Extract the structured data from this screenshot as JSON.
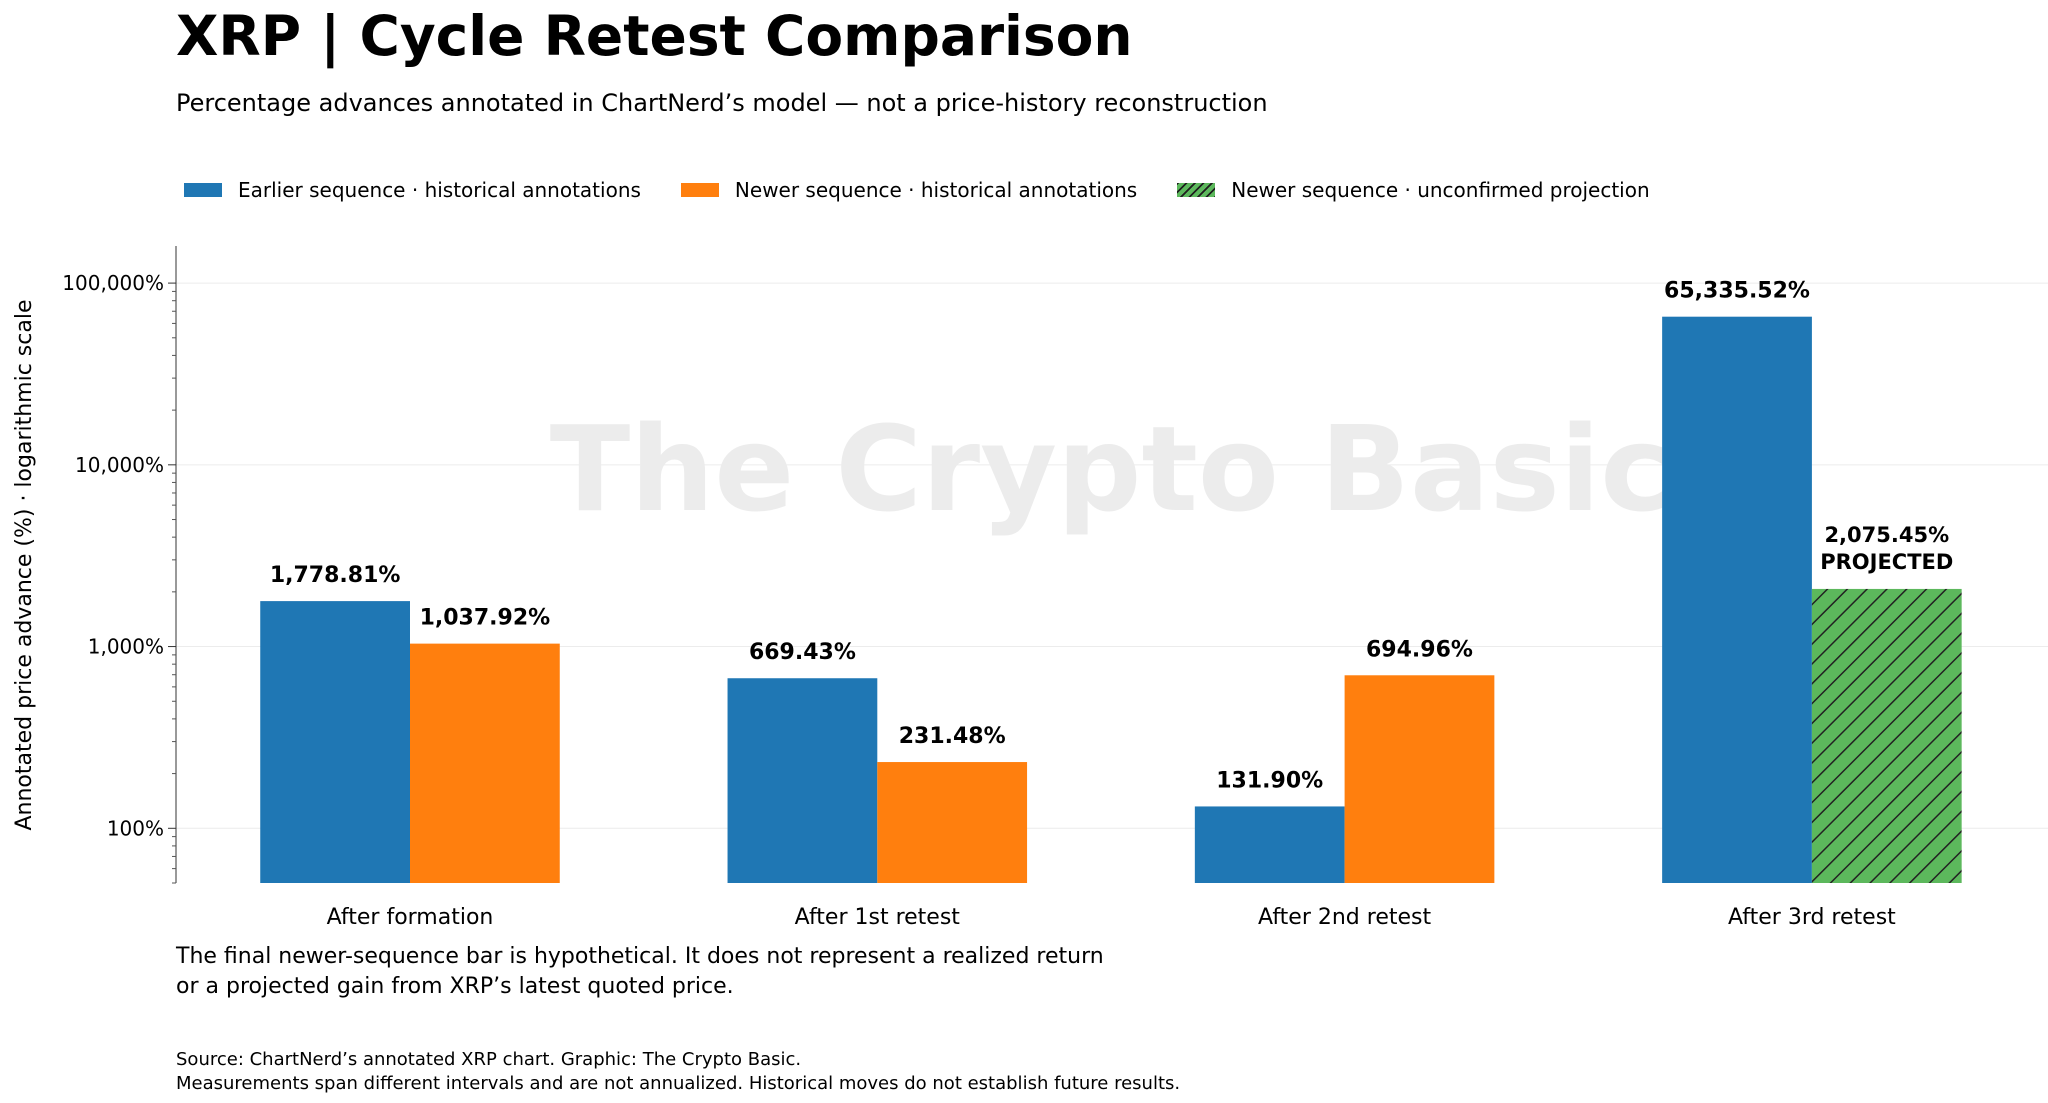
{
  "title": "XRP | Cycle Retest Comparison",
  "subtitle": "Percentage advances annotated in ChartNerd’s model — not a price-history reconstruction",
  "watermark": "The Crypto Basic",
  "legend": [
    {
      "label": "Earlier sequence · historical annotations",
      "color": "#1f77b4"
    },
    {
      "label": "Newer sequence · historical annotations",
      "color": "#ff7f0e"
    },
    {
      "label": "Newer sequence · unconfirmed projection",
      "color": "#5cb85c"
    }
  ],
  "note": {
    "line1": "The final newer-sequence bar is hypothetical. It does not represent a realized return",
    "line2": "or a projected gain from XRP’s latest quoted price."
  },
  "source": {
    "line1": "Source: ChartNerd’s annotated XRP chart. Graphic: The Crypto Basic.",
    "line2": "Measurements span different intervals and are not annualized. Historical moves do not establish future results."
  },
  "chart_data": {
    "type": "bar",
    "title": "XRP | Cycle Retest Comparison",
    "ylabel": "Annotated price advance (%) · logarithmic scale",
    "xlabel": "",
    "yscale": "log",
    "ylim": [
      50,
      160000
    ],
    "yticks": [
      {
        "value": 100,
        "label": "100%"
      },
      {
        "value": 1000,
        "label": "1,000%"
      },
      {
        "value": 10000,
        "label": "10,000%"
      },
      {
        "value": 100000,
        "label": "100,000%"
      }
    ],
    "grid": true,
    "legend_position": "top-left",
    "categories": [
      "After formation",
      "After 1st retest",
      "After 2nd retest",
      "After 3rd retest"
    ],
    "series": [
      {
        "name": "Earlier sequence · historical annotations",
        "color": "#1f77b4",
        "values": [
          1778.81,
          669.43,
          131.9,
          65335.52
        ],
        "labels": [
          "1,778.81%",
          "669.43%",
          "131.90%",
          "65,335.52%"
        ]
      },
      {
        "name": "Newer sequence · historical annotations",
        "color": "#ff7f0e",
        "values": [
          1037.92,
          231.48,
          694.96,
          null
        ],
        "labels": [
          "1,037.92%",
          "231.48%",
          "694.96%",
          ""
        ]
      },
      {
        "name": "Newer sequence · unconfirmed projection",
        "color": "#5cb85c",
        "hatched": true,
        "values": [
          null,
          null,
          null,
          2075.45
        ],
        "labels": [
          "",
          "",
          "",
          "2,075.45%"
        ],
        "annotation": "PROJECTED"
      }
    ]
  }
}
